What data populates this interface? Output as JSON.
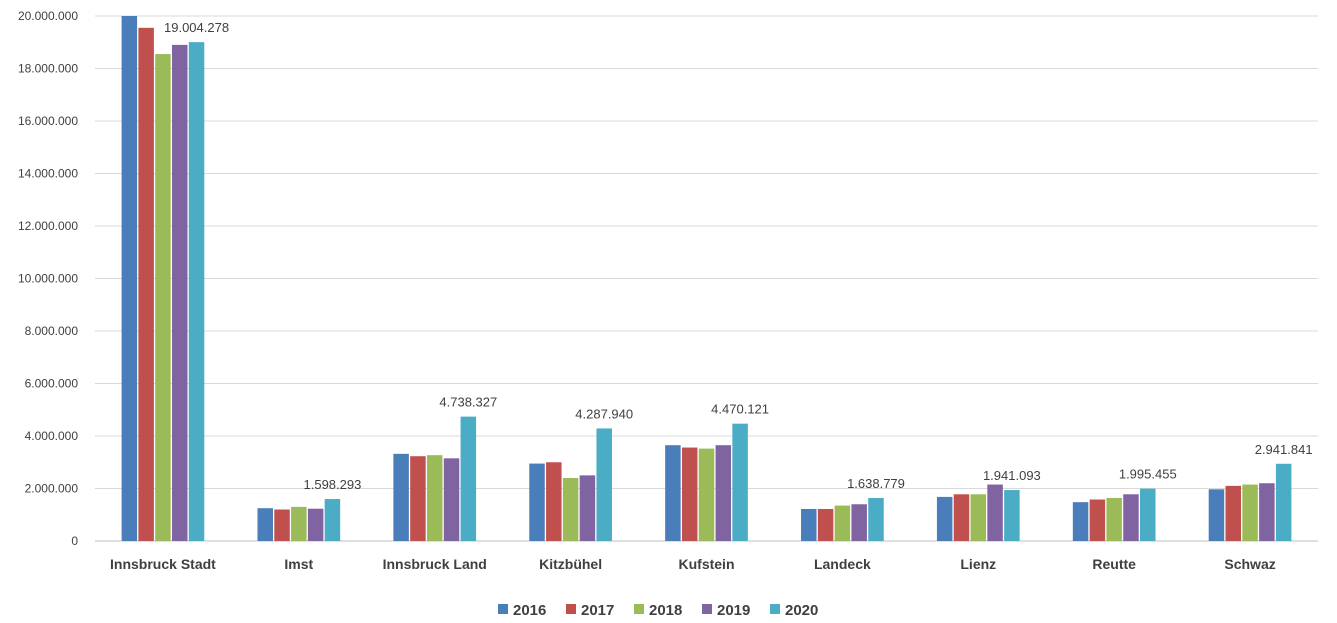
{
  "chart_data": {
    "type": "bar",
    "title": "",
    "xlabel": "",
    "ylabel": "",
    "ylim": [
      0,
      20000000
    ],
    "y_ticks": [
      "0",
      "2.000.000",
      "4.000.000",
      "6.000.000",
      "8.000.000",
      "10.000.000",
      "12.000.000",
      "14.000.000",
      "16.000.000",
      "18.000.000",
      "20.000.000"
    ],
    "y_tick_values": [
      0,
      2000000,
      4000000,
      6000000,
      8000000,
      10000000,
      12000000,
      14000000,
      16000000,
      18000000,
      20000000
    ],
    "grid": true,
    "legend_position": "bottom",
    "categories": [
      "Innsbruck Stadt",
      "Imst",
      "Innsbruck Land",
      "Kitzbühel",
      "Kufstein",
      "Landeck",
      "Lienz",
      "Reutte",
      "Schwaz"
    ],
    "series": [
      {
        "name": "2016",
        "color": "#4a7ebb",
        "values": [
          20000000,
          1250000,
          3320000,
          2950000,
          3650000,
          1220000,
          1680000,
          1480000,
          1970000
        ]
      },
      {
        "name": "2017",
        "color": "#c0504d",
        "values": [
          19550000,
          1200000,
          3230000,
          3000000,
          3560000,
          1220000,
          1780000,
          1580000,
          2100000
        ]
      },
      {
        "name": "2018",
        "color": "#9bbb59",
        "values": [
          18550000,
          1300000,
          3270000,
          2400000,
          3520000,
          1350000,
          1780000,
          1640000,
          2150000
        ]
      },
      {
        "name": "2019",
        "color": "#8064a2",
        "values": [
          18900000,
          1230000,
          3150000,
          2500000,
          3650000,
          1400000,
          2150000,
          1780000,
          2200000
        ]
      },
      {
        "name": "2020",
        "color": "#4bacc6",
        "values": [
          19004278,
          1598293,
          4738327,
          4287940,
          4470121,
          1638779,
          1941093,
          1995455,
          2941841
        ]
      }
    ],
    "data_labels": [
      "19.004.278",
      "1.598.293",
      "4.738.327",
      "4.287.940",
      "4.470.121",
      "1.638.779",
      "1.941.093",
      "1.995.455",
      "2.941.841"
    ]
  }
}
